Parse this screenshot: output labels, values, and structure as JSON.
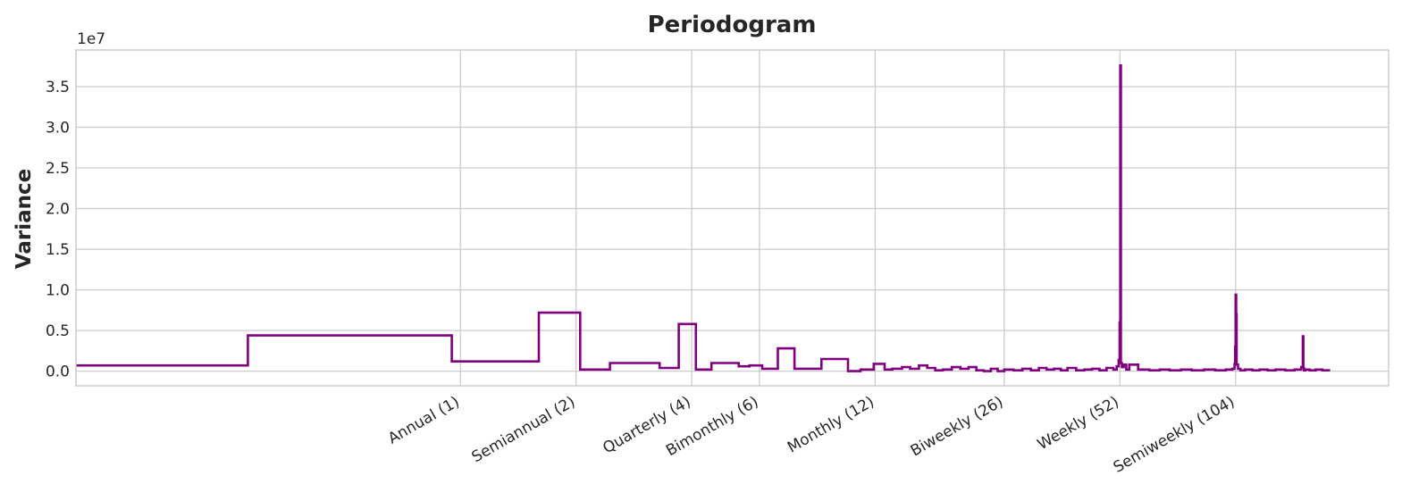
{
  "chart_data": {
    "type": "line",
    "title": "Periodogram",
    "ylabel": "Variance",
    "xlabel": "",
    "y_offset_text": "1e7",
    "y_multiplier": 10000000,
    "xscale": "log",
    "xlim": [
      0.1,
      260
    ],
    "ylim": [
      -0.18,
      3.95
    ],
    "yticks": [
      0.0,
      0.5,
      1.0,
      1.5,
      2.0,
      2.5,
      3.0,
      3.5
    ],
    "ytick_labels": [
      "0.0",
      "0.5",
      "1.0",
      "1.5",
      "2.0",
      "2.5",
      "3.0",
      "3.5"
    ],
    "xticks": [
      1,
      2,
      4,
      6,
      12,
      26,
      52,
      104
    ],
    "xtick_labels": [
      "Annual (1)",
      "Semiannual (2)",
      "Quarterly (4)",
      "Bimonthly (6)",
      "Monthly (12)",
      "Biweekly (26)",
      "Weekly (52)",
      "Semiweekly (104)"
    ],
    "grid": true,
    "line_color": "#800080",
    "series": [
      {
        "drawstyle": "steps-post",
        "x": [
          0.1,
          0.28,
          0.95,
          1.6,
          2.05,
          2.45,
          3.3,
          3.7,
          4.1,
          4.5,
          5.3,
          5.65,
          6.1,
          6.7,
          7.4,
          8.2,
          8.7,
          10.2,
          11.0,
          11.9,
          12.7,
          13.3,
          14.1,
          14.8,
          15.6,
          16.4,
          17.2,
          18.0,
          19.0,
          20.0,
          21.0,
          22.0,
          23.0,
          24.0,
          25.0,
          26.0,
          27.5,
          29.0,
          30.5,
          32.0,
          33.5,
          35.0,
          36.5,
          38.0,
          40.0,
          42.0,
          44.0,
          46.0,
          48.0,
          50.0,
          51.0,
          51.6,
          51.9,
          52.1,
          52.3,
          52.6,
          53.2,
          54.0,
          55.0,
          58.0,
          62.0,
          66.0,
          70.0,
          75.0,
          80.0,
          86.0,
          92.0,
          98.0,
          102.0,
          103.3,
          103.7,
          104.0,
          104.3,
          104.6,
          105.5,
          107.0,
          110.0,
          115.0,
          120.0,
          126.0,
          132.0,
          140.0,
          148.0,
          154.0,
          155.5,
          156.0,
          156.6,
          158.0,
          162.0,
          168.0,
          175.0,
          182.0
        ],
        "y": [
          0.07,
          0.44,
          0.12,
          0.72,
          0.02,
          0.1,
          0.04,
          0.58,
          0.02,
          0.1,
          0.06,
          0.07,
          0.03,
          0.28,
          0.03,
          0.03,
          0.15,
          0.0,
          0.02,
          0.09,
          0.02,
          0.03,
          0.05,
          0.03,
          0.07,
          0.04,
          0.01,
          0.02,
          0.05,
          0.03,
          0.05,
          0.01,
          0.0,
          0.03,
          0.0,
          0.02,
          0.01,
          0.03,
          0.01,
          0.04,
          0.02,
          0.03,
          0.01,
          0.04,
          0.01,
          0.02,
          0.03,
          0.01,
          0.04,
          0.02,
          0.06,
          0.14,
          0.6,
          3.76,
          0.1,
          0.05,
          0.08,
          0.02,
          0.08,
          0.02,
          0.01,
          0.02,
          0.01,
          0.02,
          0.01,
          0.02,
          0.01,
          0.02,
          0.03,
          0.09,
          0.3,
          0.94,
          0.7,
          0.08,
          0.03,
          0.01,
          0.02,
          0.01,
          0.02,
          0.01,
          0.02,
          0.01,
          0.02,
          0.05,
          0.43,
          0.04,
          0.01,
          0.02,
          0.01,
          0.02,
          0.01,
          0.0
        ]
      }
    ]
  }
}
